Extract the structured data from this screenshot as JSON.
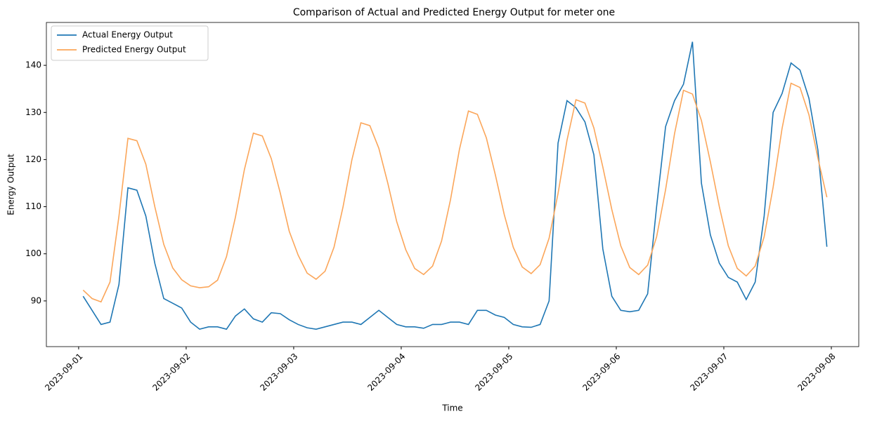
{
  "chart_data": {
    "type": "line",
    "title": "Comparison of Actual and Predicted Energy Output for meter one",
    "x_label": "Time",
    "y_label": "Energy Output",
    "x": [
      "2023-09-01 01:00",
      "2023-09-01 03:00",
      "2023-09-01 05:00",
      "2023-09-01 07:00",
      "2023-09-01 09:00",
      "2023-09-01 11:00",
      "2023-09-01 13:00",
      "2023-09-01 15:00",
      "2023-09-01 17:00",
      "2023-09-01 19:00",
      "2023-09-01 21:00",
      "2023-09-01 23:00",
      "2023-09-02 01:00",
      "2023-09-02 03:00",
      "2023-09-02 05:00",
      "2023-09-02 07:00",
      "2023-09-02 09:00",
      "2023-09-02 11:00",
      "2023-09-02 13:00",
      "2023-09-02 15:00",
      "2023-09-02 17:00",
      "2023-09-02 19:00",
      "2023-09-02 21:00",
      "2023-09-02 23:00",
      "2023-09-03 01:00",
      "2023-09-03 03:00",
      "2023-09-03 05:00",
      "2023-09-03 07:00",
      "2023-09-03 09:00",
      "2023-09-03 11:00",
      "2023-09-03 13:00",
      "2023-09-03 15:00",
      "2023-09-03 17:00",
      "2023-09-03 19:00",
      "2023-09-03 21:00",
      "2023-09-03 23:00",
      "2023-09-04 01:00",
      "2023-09-04 03:00",
      "2023-09-04 05:00",
      "2023-09-04 07:00",
      "2023-09-04 09:00",
      "2023-09-04 11:00",
      "2023-09-04 13:00",
      "2023-09-04 15:00",
      "2023-09-04 17:00",
      "2023-09-04 19:00",
      "2023-09-04 21:00",
      "2023-09-04 23:00",
      "2023-09-05 01:00",
      "2023-09-05 03:00",
      "2023-09-05 05:00",
      "2023-09-05 07:00",
      "2023-09-05 09:00",
      "2023-09-05 11:00",
      "2023-09-05 13:00",
      "2023-09-05 15:00",
      "2023-09-05 17:00",
      "2023-09-05 19:00",
      "2023-09-05 21:00",
      "2023-09-05 23:00",
      "2023-09-06 01:00",
      "2023-09-06 03:00",
      "2023-09-06 05:00",
      "2023-09-06 07:00",
      "2023-09-06 09:00",
      "2023-09-06 11:00",
      "2023-09-06 13:00",
      "2023-09-06 15:00",
      "2023-09-06 17:00",
      "2023-09-06 19:00",
      "2023-09-06 21:00",
      "2023-09-06 23:00",
      "2023-09-07 01:00",
      "2023-09-07 03:00",
      "2023-09-07 05:00",
      "2023-09-07 07:00",
      "2023-09-07 09:00",
      "2023-09-07 11:00",
      "2023-09-07 13:00",
      "2023-09-07 15:00",
      "2023-09-07 17:00",
      "2023-09-07 19:00",
      "2023-09-07 21:00",
      "2023-09-07 23:00"
    ],
    "series": [
      {
        "name": "Actual Energy Output",
        "color": "#1f77b4",
        "values": [
          91,
          88,
          85,
          85.5,
          93.5,
          114,
          113.5,
          108,
          98,
          90.5,
          89.5,
          88.5,
          85.5,
          84,
          84.5,
          84.5,
          84,
          86.8,
          88.3,
          86.2,
          85.5,
          87.5,
          87.3,
          86,
          85,
          84.3,
          84,
          84.5,
          85,
          85.5,
          85.5,
          85,
          86.5,
          88,
          86.5,
          85,
          84.5,
          84.5,
          84.2,
          85,
          85,
          85.5,
          85.5,
          85,
          88,
          88,
          87,
          86.5,
          85,
          84.5,
          84.4,
          85,
          90,
          123.5,
          132.5,
          131,
          128,
          121,
          101,
          91,
          88,
          87.7,
          88,
          91.5,
          110,
          127,
          132.5,
          136,
          145,
          115,
          104,
          98,
          95,
          94,
          90.3,
          94,
          108,
          130,
          134,
          140.5,
          139,
          133,
          122,
          101.5
        ]
      },
      {
        "name": "Predicted Energy Output",
        "color": "#fba65a",
        "values": [
          92.3,
          90.5,
          89.8,
          94,
          108,
          124.5,
          124,
          119,
          110,
          102,
          97,
          94.5,
          93.2,
          92.8,
          93,
          94.4,
          99.4,
          107.8,
          117.9,
          125.6,
          125,
          120.2,
          112.9,
          104.8,
          99.7,
          95.9,
          94.6,
          96.3,
          101.4,
          109.9,
          120,
          127.8,
          127.2,
          122.4,
          115,
          106.8,
          100.9,
          96.9,
          95.6,
          97.4,
          102.7,
          111.5,
          122.2,
          130.3,
          129.6,
          124.6,
          116.8,
          108.3,
          101.4,
          97.2,
          95.8,
          97.7,
          103.3,
          112.8,
          124.1,
          132.7,
          132,
          126.7,
          118.4,
          109.4,
          101.7,
          97.1,
          95.6,
          97.6,
          103.6,
          113.6,
          125.5,
          134.7,
          133.9,
          128.3,
          119.5,
          110,
          101.7,
          96.9,
          95.3,
          97.4,
          103.6,
          114.1,
          126.6,
          136.2,
          135.3,
          129.5,
          120.3,
          112
        ]
      }
    ],
    "xlim": [
      "2023-08-31 16:48",
      "2023-09-08 06:07"
    ],
    "xticks": [
      "2023-09-01",
      "2023-09-02",
      "2023-09-03",
      "2023-09-04",
      "2023-09-05",
      "2023-09-06",
      "2023-09-07",
      "2023-09-08"
    ],
    "ylim": [
      80.3,
      149.1
    ],
    "yticks": [
      90,
      100,
      110,
      120,
      130,
      140
    ],
    "grid": false,
    "legend": "upper left"
  }
}
